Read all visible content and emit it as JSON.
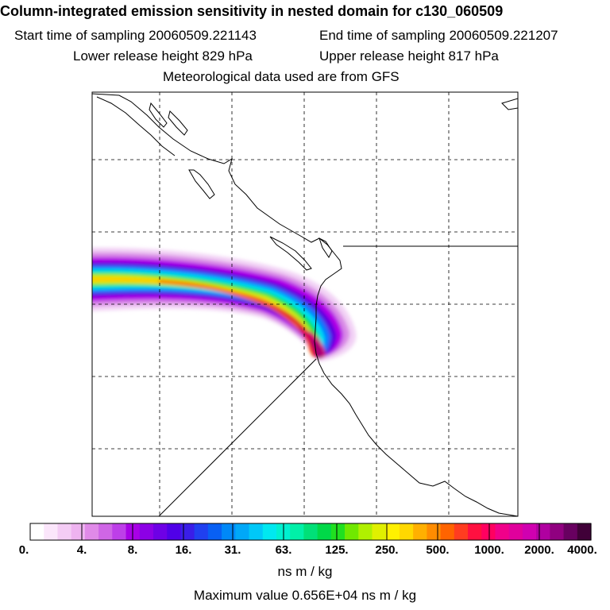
{
  "header": {
    "title": "Column-integrated emission sensitivity in nested domain for c130_060509",
    "start_time": "Start time of sampling 20060509.221143",
    "end_time": "End time of sampling 20060509.221207",
    "lower_release": "Lower release height  829 hPa",
    "upper_release": "Upper release height  817 hPa",
    "met_data": "Meteorological data used are from GFS"
  },
  "map": {
    "map_type": "emission sensitivity footprint with coastlines and dashed lat/lon grid",
    "plume_palette": [
      "#ffffff",
      "#f2d2f5",
      "#d98ae6",
      "#b400e6",
      "#5a00e0",
      "#0078ff",
      "#00e0f0",
      "#00e040",
      "#d2f000",
      "#ffcc00",
      "#ff6000",
      "#e00030",
      "#d2006e",
      "#a00078",
      "#500030"
    ]
  },
  "colorbar": {
    "tick_labels": [
      "0.",
      "4.",
      "8.",
      "16.",
      "31.",
      "63.",
      "125.",
      "250.",
      "500.",
      "1000.",
      "2000.",
      "4000."
    ],
    "colors": [
      "#ffffff",
      "#fbe6fb",
      "#f4ccf5",
      "#eeb3f0",
      "#e08ae8",
      "#cf66e6",
      "#bd3fe8",
      "#a800e6",
      "#8c00e6",
      "#6e00e6",
      "#5000e8",
      "#3a1ee8",
      "#2040f0",
      "#0860f4",
      "#0088f8",
      "#00a8f8",
      "#00c8f8",
      "#00e8f0",
      "#00f0d0",
      "#00f0a8",
      "#00e078",
      "#00d848",
      "#20e020",
      "#70e800",
      "#b0f000",
      "#e0f000",
      "#fff000",
      "#ffd800",
      "#ffb000",
      "#ff8c00",
      "#ff6400",
      "#ff3c20",
      "#ff1040",
      "#ff0060",
      "#f0008a",
      "#e0009c",
      "#d000b0",
      "#b000a0",
      "#900080",
      "#680060",
      "#400038"
    ],
    "units": "ns m / kg",
    "max_value": "Maximum value  0.656E+04 ns m / kg"
  }
}
